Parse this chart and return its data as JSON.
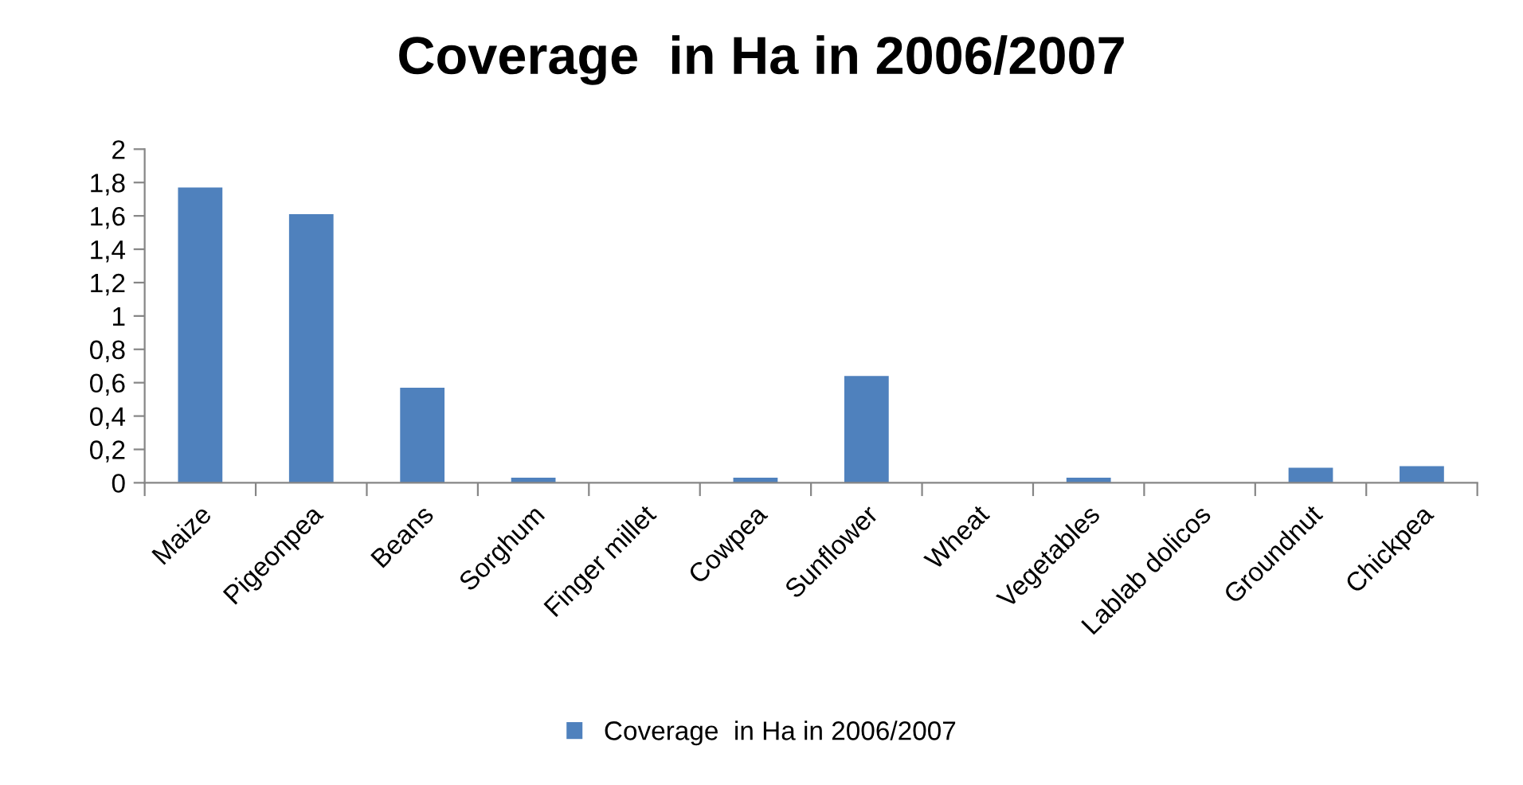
{
  "chart_data": {
    "type": "bar",
    "title": "Coverage  in Ha in 2006/2007",
    "categories": [
      "Maize",
      "Pigeonpea",
      "Beans",
      "Sorghum",
      "Finger millet",
      "Cowpea",
      "Sunflower",
      "Wheat",
      "Vegetables",
      "Lablab dolicos",
      "Groundnut",
      "Chickpea"
    ],
    "series": [
      {
        "name": "Coverage  in Ha in 2006/2007",
        "color": "#4f81bd",
        "values": [
          1.77,
          1.61,
          0.57,
          0.03,
          0,
          0.03,
          0.64,
          0,
          0.03,
          0,
          0.09,
          0.1
        ]
      }
    ],
    "ylim": [
      0,
      2
    ],
    "yticks": [
      0,
      {
        "value": 0.2,
        "label": "0,2"
      },
      {
        "value": 0.4,
        "label": "0,4"
      },
      {
        "value": 0.6,
        "label": "0,6"
      },
      {
        "value": 0.8,
        "label": "0,8"
      },
      1,
      {
        "value": 1.2,
        "label": "1,2"
      },
      {
        "value": 1.4,
        "label": "1,4"
      },
      {
        "value": 1.6,
        "label": "1,6"
      },
      {
        "value": 1.8,
        "label": "1,8"
      },
      2
    ],
    "grid": false,
    "legend": "bottom"
  }
}
